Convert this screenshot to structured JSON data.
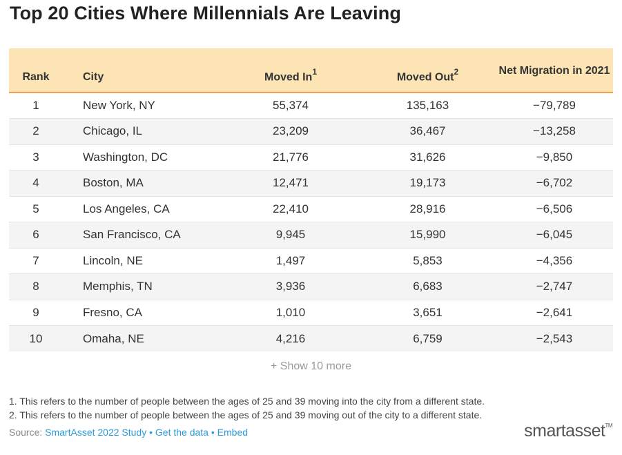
{
  "title": "Top 20 Cities Where Millennials Are Leaving",
  "table": {
    "headers": {
      "rank": "Rank",
      "city": "City",
      "moved_in": "Moved In",
      "moved_in_note": "1",
      "moved_out": "Moved Out",
      "moved_out_note": "2",
      "net": "Net Migration in 2021"
    },
    "rows": [
      {
        "rank": "1",
        "city": "New York, NY",
        "moved_in": "55,374",
        "moved_out": "135,163",
        "net": "−79,789"
      },
      {
        "rank": "2",
        "city": "Chicago, IL",
        "moved_in": "23,209",
        "moved_out": "36,467",
        "net": "−13,258"
      },
      {
        "rank": "3",
        "city": "Washington, DC",
        "moved_in": "21,776",
        "moved_out": "31,626",
        "net": "−9,850"
      },
      {
        "rank": "4",
        "city": "Boston, MA",
        "moved_in": "12,471",
        "moved_out": "19,173",
        "net": "−6,702"
      },
      {
        "rank": "5",
        "city": "Los Angeles, CA",
        "moved_in": "22,410",
        "moved_out": "28,916",
        "net": "−6,506"
      },
      {
        "rank": "6",
        "city": "San Francisco, CA",
        "moved_in": "9,945",
        "moved_out": "15,990",
        "net": "−6,045"
      },
      {
        "rank": "7",
        "city": "Lincoln, NE",
        "moved_in": "1,497",
        "moved_out": "5,853",
        "net": "−4,356"
      },
      {
        "rank": "8",
        "city": "Memphis, TN",
        "moved_in": "3,936",
        "moved_out": "6,683",
        "net": "−2,747"
      },
      {
        "rank": "9",
        "city": "Fresno, CA",
        "moved_in": "1,010",
        "moved_out": "3,651",
        "net": "−2,641"
      },
      {
        "rank": "10",
        "city": "Omaha, NE",
        "moved_in": "4,216",
        "moved_out": "6,759",
        "net": "−2,543"
      }
    ]
  },
  "show_more": "+ Show 10 more",
  "footnotes": [
    "1. This refers to the number of people between the ages of 25 and 39 moving into the city from a different state.",
    "2. This refers to the number of people between the ages of 25 and 39 moving out of the city to a different state."
  ],
  "source": {
    "label": "Source:",
    "study_link": "SmartAsset 2022 Study",
    "separator": "•",
    "data_link": "Get the data",
    "embed_link": "Embed"
  },
  "logo": {
    "text": "smartasset",
    "tm": "TM"
  },
  "colors": {
    "header_bg": "#fce4b4",
    "header_border": "#f0a050",
    "link": "#2a9bd8",
    "row_alt": "#f4f4f4"
  }
}
